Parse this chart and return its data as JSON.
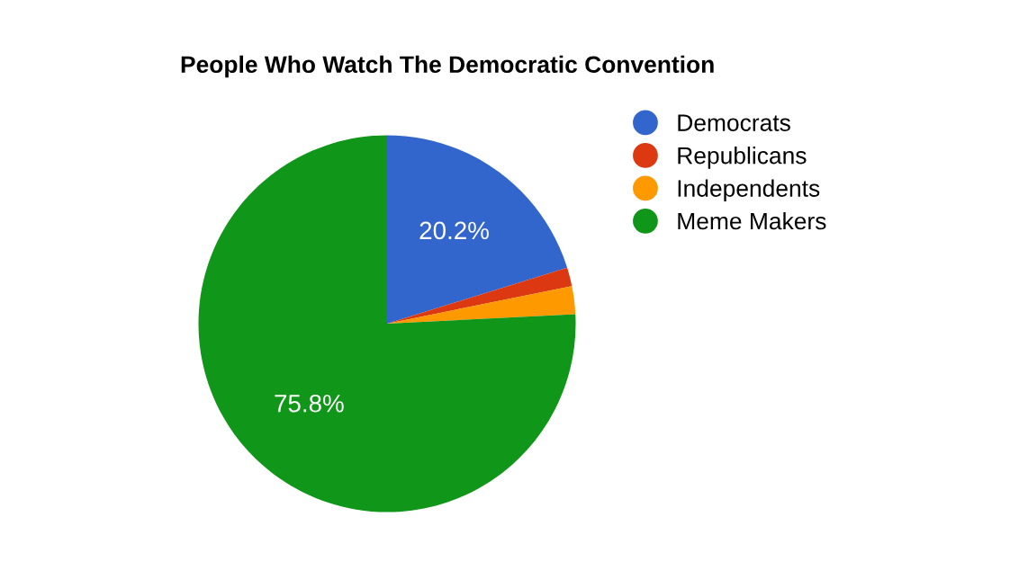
{
  "chart_data": {
    "type": "pie",
    "title": "People Who Watch The Democratic Convention",
    "categories": [
      "Democrats",
      "Republicans",
      "Independents",
      "Meme Makers"
    ],
    "values": [
      20.2,
      1.6,
      2.4,
      75.8
    ],
    "colors": [
      "#3366cc",
      "#dc3912",
      "#ff9900",
      "#109618"
    ],
    "value_labels": [
      "20.2%",
      null,
      null,
      "75.8%"
    ],
    "legend": "top right"
  }
}
